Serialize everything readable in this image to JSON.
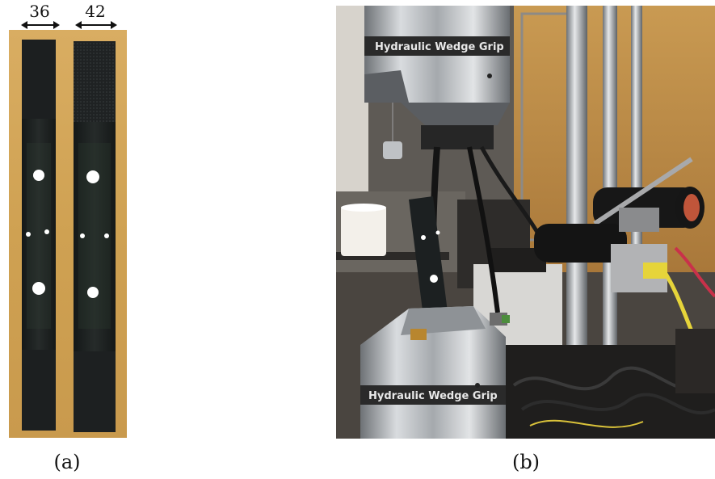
{
  "panel_a": {
    "dimensions": [
      {
        "value": "36"
      },
      {
        "value": "42"
      }
    ],
    "caption": "(a)"
  },
  "panel_b": {
    "grip_label_top": "Hydraulic Wedge Grip",
    "grip_label_bottom": "Hydraulic Wedge Grip",
    "caption": "(b)"
  },
  "colors": {
    "cardboard": "#d4a85a",
    "specimen": "#1b1e1e",
    "steel": "#b9bcbf",
    "background_lab": "#3a3734",
    "cable_yellow": "#e6d43a"
  }
}
